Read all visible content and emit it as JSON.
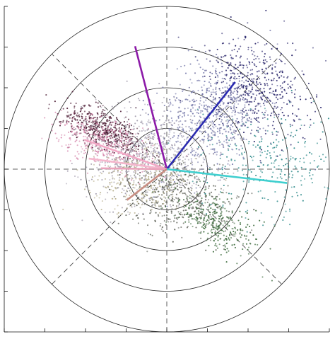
{
  "chart_data": {
    "type": "scatter",
    "coordinate_system": "polar-grid-overlay",
    "grid": true,
    "legend": "none",
    "range_rings": [
      1,
      2,
      3,
      4
    ],
    "x_range": [
      -4,
      4
    ],
    "y_range": [
      -4,
      4
    ],
    "spokes_deg": [
      0,
      45,
      90,
      135
    ],
    "series": [
      {
        "color": "#8c1aa8",
        "vector": [
          -0.78,
          3.02
        ]
      },
      {
        "color": "#2a2ab0",
        "vector": [
          1.68,
          2.14
        ]
      },
      {
        "color": "#3fcfcf",
        "vector": [
          2.96,
          -0.34
        ]
      },
      {
        "color": "#f2a9c6",
        "vector": [
          -2.02,
          0.72
        ]
      },
      {
        "color": "#f4b6cc",
        "vector": [
          -1.92,
          0.26
        ]
      },
      {
        "color": "#e9a3bb",
        "vector": [
          -1.62,
          0.02
        ]
      },
      {
        "color": "#c98f84",
        "vector": [
          -0.98,
          -0.76
        ]
      }
    ],
    "clusters": [
      {
        "color": "#2e2a6e",
        "center": [
          2.2,
          1.95
        ],
        "spread": [
          0.55,
          0.7
        ],
        "angle": 50,
        "count": 520
      },
      {
        "color": "#7c7fae",
        "center": [
          1.1,
          1.3
        ],
        "spread": [
          0.7,
          0.55
        ],
        "angle": 40,
        "count": 620
      },
      {
        "color": "#2f8b8b",
        "center": [
          2.5,
          0.1
        ],
        "spread": [
          0.9,
          0.6
        ],
        "angle": 10,
        "count": 300
      },
      {
        "color": "#4f1f37",
        "center": [
          -1.55,
          0.95
        ],
        "spread": [
          0.55,
          0.22
        ],
        "angle": -25,
        "count": 520
      },
      {
        "color": "#d78aae",
        "center": [
          -1.5,
          0.62
        ],
        "spread": [
          0.6,
          0.28
        ],
        "angle": -18,
        "count": 380
      },
      {
        "color": "#a8a2b2",
        "center": [
          -0.4,
          0.35
        ],
        "spread": [
          0.75,
          0.6
        ],
        "angle": 0,
        "count": 700
      },
      {
        "color": "#686b62",
        "center": [
          0.25,
          -0.7
        ],
        "spread": [
          0.7,
          0.45
        ],
        "angle": -20,
        "count": 500
      },
      {
        "color": "#3d6b3d",
        "center": [
          1.2,
          -1.3
        ],
        "spread": [
          0.6,
          0.28
        ],
        "angle": -38,
        "count": 320
      },
      {
        "color": "#b8b08e",
        "center": [
          -0.7,
          -0.3
        ],
        "spread": [
          0.6,
          0.4
        ],
        "angle": 0,
        "count": 260
      }
    ]
  }
}
